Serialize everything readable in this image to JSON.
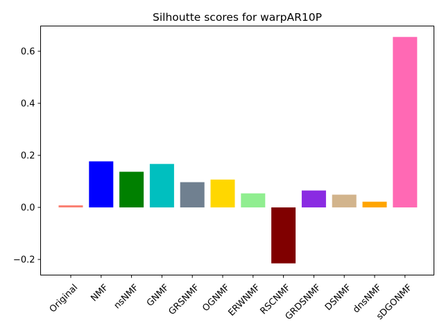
{
  "chart_data": {
    "type": "bar",
    "title": "Silhoutte scores for warpAR10P",
    "xlabel": "",
    "ylabel": "",
    "categories": [
      "Original",
      "NMF",
      "nsNMF",
      "GNMF",
      "GRSNMF",
      "OGNMF",
      "ERWNMF",
      "RSCNMF",
      "GRDSNMF",
      "DSNMF",
      "dnsNMF",
      "sDGONMF"
    ],
    "values": [
      0.008,
      0.177,
      0.137,
      0.167,
      0.097,
      0.107,
      0.054,
      -0.215,
      0.065,
      0.049,
      0.022,
      0.655
    ],
    "colors": [
      "#fa8072",
      "#0000ff",
      "#008000",
      "#00bfbf",
      "#708090",
      "#ffd700",
      "#90ee90",
      "#800000",
      "#8a2be2",
      "#d2b48c",
      "#ffa500",
      "#ff69b4"
    ],
    "yticks": [
      -0.2,
      0.0,
      0.2,
      0.4,
      0.6
    ],
    "ytick_labels": [
      "−0.2",
      "0.0",
      "0.2",
      "0.4",
      "0.6"
    ],
    "ylim": [
      -0.26,
      0.697
    ],
    "grid": false,
    "legend": "none"
  }
}
